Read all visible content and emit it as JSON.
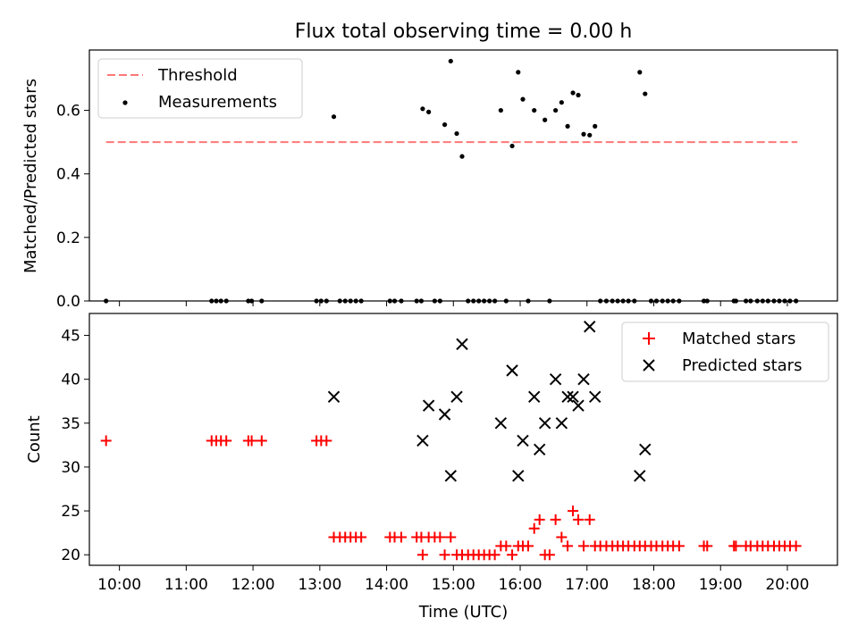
{
  "figure": {
    "title": "Flux total observing time = 0.00 h"
  },
  "chart_data": [
    {
      "type": "scatter",
      "title": "Flux total observing time = 0.00 h",
      "xlabel": "",
      "ylabel": "Matched/Predicted stars",
      "xlim": [
        9.55,
        20.75
      ],
      "ylim": [
        0,
        0.79
      ],
      "yticks": [
        0,
        0.2,
        0.4,
        0.6
      ],
      "ytick_labels": [
        "0.0",
        "0.2",
        "0.4",
        "0.6"
      ],
      "legend_position": "top-left",
      "threshold": {
        "name": "Threshold",
        "value": 0.5,
        "x_range": [
          9.8,
          20.15
        ],
        "color": "#ff7777"
      },
      "series": [
        {
          "name": "Measurements",
          "marker": "dot",
          "color": "#000000",
          "x": [
            9.8,
            11.38,
            11.45,
            11.52,
            11.6,
            11.93,
            11.98,
            12.13,
            12.95,
            13.02,
            13.1,
            13.21,
            13.3,
            13.38,
            13.46,
            13.54,
            13.62,
            14.05,
            14.12,
            14.22,
            14.45,
            14.52,
            14.54,
            14.63,
            14.72,
            14.8,
            14.87,
            14.96,
            15.05,
            15.13,
            15.22,
            15.3,
            15.38,
            15.46,
            15.54,
            15.62,
            15.71,
            15.79,
            15.88,
            15.97,
            16.04,
            16.12,
            16.21,
            16.37,
            16.44,
            16.53,
            16.62,
            16.71,
            16.79,
            16.87,
            16.95,
            17.04,
            17.12,
            17.2,
            17.29,
            17.38,
            17.46,
            17.54,
            17.62,
            17.71,
            17.79,
            17.87,
            17.96,
            18.04,
            18.13,
            18.21,
            18.29,
            18.38,
            18.75,
            18.8,
            19.2,
            19.23,
            19.38,
            19.45,
            19.55,
            19.63,
            19.71,
            19.8,
            19.88,
            19.96,
            20.04,
            20.13
          ],
          "y": [
            0.0,
            0.0,
            0.0,
            0.0,
            0.0,
            0.0,
            0.0,
            0.0,
            0.0,
            0.0,
            0.0,
            0.58,
            0.0,
            0.0,
            0.0,
            0.0,
            0.0,
            0.0,
            0.0,
            0.0,
            0.0,
            0.0,
            0.605,
            0.595,
            0.0,
            0.0,
            0.555,
            0.755,
            0.527,
            0.455,
            0.0,
            0.0,
            0.0,
            0.0,
            0.0,
            0.0,
            0.6,
            0.0,
            0.488,
            0.72,
            0.635,
            0.0,
            0.6,
            0.57,
            0.0,
            0.6,
            0.625,
            0.55,
            0.655,
            0.648,
            0.525,
            0.522,
            0.55,
            0.0,
            0.0,
            0.0,
            0.0,
            0.0,
            0.0,
            0.0,
            0.72,
            0.652,
            0.0,
            0.0,
            0.0,
            0.0,
            0.0,
            0.0,
            0.0,
            0.0,
            0.0,
            0.0,
            0.0,
            0.0,
            0.0,
            0.0,
            0.0,
            0.0,
            0.0,
            0.0,
            0.0,
            0.0
          ]
        }
      ]
    },
    {
      "type": "scatter",
      "title": "",
      "xlabel": "Time (UTC)",
      "ylabel": "Count",
      "xlim": [
        9.55,
        20.75
      ],
      "ylim": [
        18.8,
        47.5
      ],
      "yticks": [
        20,
        25,
        30,
        35,
        40,
        45
      ],
      "ytick_labels": [
        "20",
        "25",
        "30",
        "35",
        "40",
        "45"
      ],
      "xticks": [
        10,
        11,
        12,
        13,
        14,
        15,
        16,
        17,
        18,
        19,
        20
      ],
      "xtick_labels": [
        "10:00",
        "11:00",
        "12:00",
        "13:00",
        "14:00",
        "15:00",
        "16:00",
        "17:00",
        "18:00",
        "19:00",
        "20:00"
      ],
      "legend_position": "top-right",
      "series": [
        {
          "name": "Matched stars",
          "marker": "plus",
          "color": "#ff0000",
          "x": [
            9.8,
            11.38,
            11.45,
            11.52,
            11.6,
            11.93,
            11.98,
            12.13,
            12.95,
            13.02,
            13.1,
            13.21,
            13.3,
            13.38,
            13.46,
            13.54,
            13.62,
            14.05,
            14.12,
            14.22,
            14.45,
            14.52,
            14.54,
            14.63,
            14.72,
            14.8,
            14.87,
            14.96,
            15.05,
            15.13,
            15.22,
            15.3,
            15.38,
            15.46,
            15.54,
            15.62,
            15.71,
            15.79,
            15.88,
            15.97,
            16.04,
            16.12,
            16.21,
            16.29,
            16.37,
            16.44,
            16.53,
            16.62,
            16.71,
            16.79,
            16.87,
            16.95,
            17.04,
            17.12,
            17.2,
            17.29,
            17.38,
            17.46,
            17.54,
            17.62,
            17.71,
            17.79,
            17.87,
            17.96,
            18.04,
            18.13,
            18.21,
            18.29,
            18.38,
            18.75,
            18.8,
            19.2,
            19.23,
            19.38,
            19.45,
            19.55,
            19.63,
            19.71,
            19.8,
            19.88,
            19.96,
            20.04,
            20.13
          ],
          "y": [
            33,
            33,
            33,
            33,
            33,
            33,
            33,
            33,
            33,
            33,
            33,
            22,
            22,
            22,
            22,
            22,
            22,
            22,
            22,
            22,
            22,
            22,
            20,
            22,
            22,
            22,
            20,
            22,
            20,
            20,
            20,
            20,
            20,
            20,
            20,
            20,
            21,
            21,
            20,
            21,
            21,
            21,
            23,
            24,
            20,
            20,
            24,
            22,
            21,
            25,
            24,
            21,
            24,
            21,
            21,
            21,
            21,
            21,
            21,
            21,
            21,
            21,
            21,
            21,
            21,
            21,
            21,
            21,
            21,
            21,
            21,
            21,
            21,
            21,
            21,
            21,
            21,
            21,
            21,
            21,
            21,
            21,
            21
          ]
        },
        {
          "name": "Predicted stars",
          "marker": "x",
          "color": "#000000",
          "x": [
            13.21,
            14.54,
            14.63,
            14.87,
            14.96,
            15.05,
            15.13,
            15.71,
            15.88,
            15.97,
            16.04,
            16.21,
            16.29,
            16.37,
            16.53,
            16.62,
            16.71,
            16.79,
            16.87,
            16.95,
            17.04,
            17.12,
            17.79,
            17.87
          ],
          "y": [
            38,
            33,
            37,
            36,
            29,
            38,
            44,
            35,
            41,
            29,
            33,
            38,
            32,
            35,
            40,
            35,
            38,
            38,
            37,
            40,
            46,
            38,
            29,
            32
          ]
        }
      ]
    }
  ]
}
